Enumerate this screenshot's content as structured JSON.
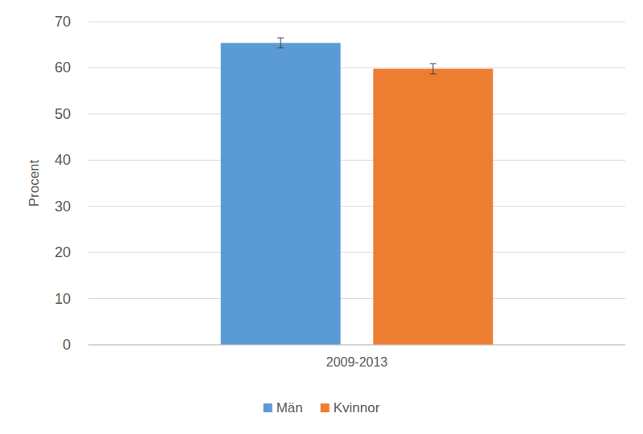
{
  "chart_data": {
    "type": "bar",
    "y_label": "Procent",
    "categories": [
      "2009-2013"
    ],
    "series": [
      {
        "name": "Män",
        "color": "#5b9bd5",
        "values": [
          65.4
        ],
        "errors": [
          1.1
        ]
      },
      {
        "name": "Kvinnor",
        "color": "#ed7d31",
        "values": [
          59.8
        ],
        "errors": [
          1.1
        ]
      }
    ],
    "ylim": [
      0,
      70
    ],
    "yticks": [
      0,
      10,
      20,
      30,
      40,
      50,
      60,
      70
    ],
    "grid": true,
    "legend": "bottom"
  }
}
